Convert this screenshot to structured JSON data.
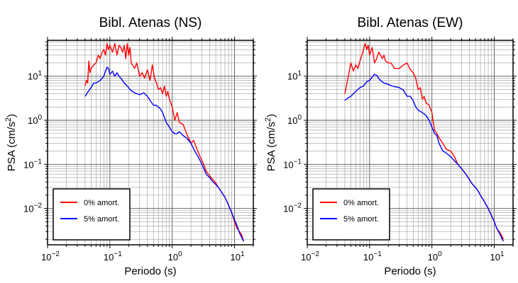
{
  "chart_data": [
    {
      "type": "line",
      "title": "Bibl. Atenas (NS)",
      "xlabel": "Periodo (s)",
      "ylabel": "PSA (cm/s²)",
      "xscale": "log",
      "yscale": "log",
      "xlim": [
        0.01,
        20
      ],
      "ylim": [
        0.0015,
        65
      ],
      "xtick_values": [
        0.01,
        0.1,
        1,
        10
      ],
      "xtick_labels": [
        {
          "base": "10",
          "exp": "−2"
        },
        {
          "base": "10",
          "exp": "−1"
        },
        {
          "base": "10",
          "exp": "0"
        },
        {
          "base": "10",
          "exp": "1"
        }
      ],
      "ytick_values": [
        0.01,
        0.1,
        1,
        10
      ],
      "ytick_labels": [
        {
          "base": "10",
          "exp": "−2"
        },
        {
          "base": "10",
          "exp": "−1"
        },
        {
          "base": "10",
          "exp": "0"
        },
        {
          "base": "10",
          "exp": "1"
        }
      ],
      "grid": true,
      "legend_position": "bottom-left",
      "series": [
        {
          "name": "0% amort.",
          "color": "#ff0000",
          "points": [
            [
              0.04,
              6
            ],
            [
              0.042,
              8
            ],
            [
              0.044,
              7
            ],
            [
              0.046,
              22
            ],
            [
              0.048,
              12
            ],
            [
              0.05,
              15
            ],
            [
              0.055,
              18
            ],
            [
              0.06,
              20
            ],
            [
              0.065,
              30
            ],
            [
              0.07,
              25
            ],
            [
              0.075,
              35
            ],
            [
              0.08,
              40
            ],
            [
              0.085,
              30
            ],
            [
              0.09,
              55
            ],
            [
              0.095,
              40
            ],
            [
              0.1,
              50
            ],
            [
              0.11,
              35
            ],
            [
              0.12,
              55
            ],
            [
              0.13,
              30
            ],
            [
              0.14,
              50
            ],
            [
              0.15,
              45
            ],
            [
              0.16,
              35
            ],
            [
              0.17,
              50
            ],
            [
              0.18,
              25
            ],
            [
              0.19,
              55
            ],
            [
              0.2,
              30
            ],
            [
              0.21,
              45
            ],
            [
              0.22,
              20
            ],
            [
              0.25,
              15
            ],
            [
              0.27,
              20
            ],
            [
              0.3,
              10
            ],
            [
              0.33,
              12
            ],
            [
              0.36,
              9
            ],
            [
              0.4,
              14
            ],
            [
              0.44,
              8
            ],
            [
              0.48,
              18
            ],
            [
              0.52,
              9
            ],
            [
              0.56,
              7
            ],
            [
              0.6,
              5
            ],
            [
              0.65,
              5.5
            ],
            [
              0.7,
              4
            ],
            [
              0.75,
              6
            ],
            [
              0.8,
              3.5
            ],
            [
              0.85,
              4.5
            ],
            [
              0.9,
              3
            ],
            [
              1.0,
              2
            ],
            [
              1.1,
              1
            ],
            [
              1.2,
              1.5
            ],
            [
              1.3,
              0.9
            ],
            [
              1.5,
              0.8
            ],
            [
              1.7,
              0.5
            ],
            [
              2.0,
              0.3
            ],
            [
              2.2,
              0.35
            ],
            [
              2.5,
              0.22
            ],
            [
              2.8,
              0.15
            ],
            [
              3.2,
              0.1
            ],
            [
              3.5,
              0.07
            ],
            [
              4,
              0.055
            ],
            [
              4.5,
              0.045
            ],
            [
              5,
              0.038
            ],
            [
              5.5,
              0.03
            ],
            [
              6,
              0.025
            ],
            [
              7,
              0.018
            ],
            [
              8,
              0.012
            ],
            [
              9,
              0.008
            ],
            [
              10,
              0.005
            ],
            [
              11,
              0.0035
            ],
            [
              12,
              0.003
            ],
            [
              13,
              0.0025
            ],
            [
              14,
              0.0018
            ]
          ]
        },
        {
          "name": "5% amort.",
          "color": "#0000ff",
          "points": [
            [
              0.04,
              3.5
            ],
            [
              0.045,
              4.5
            ],
            [
              0.05,
              5.5
            ],
            [
              0.055,
              7
            ],
            [
              0.06,
              7
            ],
            [
              0.065,
              7.5
            ],
            [
              0.07,
              8
            ],
            [
              0.075,
              9
            ],
            [
              0.08,
              10
            ],
            [
              0.085,
              13
            ],
            [
              0.09,
              16
            ],
            [
              0.095,
              15
            ],
            [
              0.1,
              11
            ],
            [
              0.11,
              13
            ],
            [
              0.12,
              10
            ],
            [
              0.13,
              12
            ],
            [
              0.14,
              10
            ],
            [
              0.15,
              9
            ],
            [
              0.17,
              7
            ],
            [
              0.19,
              6
            ],
            [
              0.21,
              5
            ],
            [
              0.23,
              4.5
            ],
            [
              0.25,
              4.2
            ],
            [
              0.3,
              3.8
            ],
            [
              0.35,
              4.2
            ],
            [
              0.4,
              3.5
            ],
            [
              0.45,
              2.7
            ],
            [
              0.5,
              2.2
            ],
            [
              0.55,
              2.2
            ],
            [
              0.6,
              2
            ],
            [
              0.65,
              1.8
            ],
            [
              0.7,
              1.5
            ],
            [
              0.8,
              0.9
            ],
            [
              0.9,
              0.7
            ],
            [
              1.0,
              0.55
            ],
            [
              1.1,
              0.5
            ],
            [
              1.2,
              0.5
            ],
            [
              1.3,
              0.55
            ],
            [
              1.5,
              0.45
            ],
            [
              1.7,
              0.4
            ],
            [
              2.0,
              0.3
            ],
            [
              2.3,
              0.2
            ],
            [
              2.6,
              0.15
            ],
            [
              3.0,
              0.1
            ],
            [
              3.5,
              0.06
            ],
            [
              4,
              0.05
            ],
            [
              4.5,
              0.04
            ],
            [
              5,
              0.035
            ],
            [
              5.5,
              0.03
            ],
            [
              6,
              0.025
            ],
            [
              7,
              0.018
            ],
            [
              8,
              0.012
            ],
            [
              9,
              0.008
            ],
            [
              10,
              0.0055
            ],
            [
              11,
              0.004
            ],
            [
              12,
              0.0028
            ],
            [
              13,
              0.0022
            ],
            [
              14,
              0.0018
            ]
          ]
        }
      ]
    },
    {
      "type": "line",
      "title": "Bibl. Atenas (EW)",
      "xlabel": "Periodo (s)",
      "ylabel": "PSA (cm/s²)",
      "xscale": "log",
      "yscale": "log",
      "xlim": [
        0.01,
        20
      ],
      "ylim": [
        0.0015,
        65
      ],
      "xtick_values": [
        0.01,
        0.1,
        1,
        10
      ],
      "xtick_labels": [
        {
          "base": "10",
          "exp": "−2"
        },
        {
          "base": "10",
          "exp": "−1"
        },
        {
          "base": "10",
          "exp": "0"
        },
        {
          "base": "10",
          "exp": "1"
        }
      ],
      "ytick_values": [
        0.01,
        0.1,
        1,
        10
      ],
      "ytick_labels": [
        {
          "base": "10",
          "exp": "−2"
        },
        {
          "base": "10",
          "exp": "−1"
        },
        {
          "base": "10",
          "exp": "0"
        },
        {
          "base": "10",
          "exp": "1"
        }
      ],
      "grid": true,
      "legend_position": "bottom-left",
      "series": [
        {
          "name": "0% amort.",
          "color": "#ff0000",
          "points": [
            [
              0.04,
              4
            ],
            [
              0.045,
              9
            ],
            [
              0.05,
              20
            ],
            [
              0.055,
              13
            ],
            [
              0.06,
              18
            ],
            [
              0.065,
              15
            ],
            [
              0.07,
              22
            ],
            [
              0.075,
              30
            ],
            [
              0.08,
              40
            ],
            [
              0.085,
              55
            ],
            [
              0.09,
              40
            ],
            [
              0.095,
              50
            ],
            [
              0.1,
              30
            ],
            [
              0.11,
              45
            ],
            [
              0.12,
              20
            ],
            [
              0.13,
              25
            ],
            [
              0.14,
              35
            ],
            [
              0.15,
              30
            ],
            [
              0.16,
              25
            ],
            [
              0.17,
              30
            ],
            [
              0.18,
              22
            ],
            [
              0.2,
              20
            ],
            [
              0.22,
              20
            ],
            [
              0.25,
              15
            ],
            [
              0.3,
              15
            ],
            [
              0.35,
              18
            ],
            [
              0.4,
              20
            ],
            [
              0.45,
              14
            ],
            [
              0.5,
              12
            ],
            [
              0.55,
              9
            ],
            [
              0.6,
              5
            ],
            [
              0.65,
              5.5
            ],
            [
              0.7,
              3
            ],
            [
              0.75,
              3.5
            ],
            [
              0.8,
              2.5
            ],
            [
              0.9,
              2.2
            ],
            [
              1.0,
              1.5
            ],
            [
              1.1,
              0.6
            ],
            [
              1.2,
              0.5
            ],
            [
              1.3,
              0.4
            ],
            [
              1.5,
              0.3
            ],
            [
              1.7,
              0.22
            ],
            [
              2.0,
              0.2
            ],
            [
              2.3,
              0.15
            ],
            [
              2.6,
              0.1
            ],
            [
              3.0,
              0.08
            ],
            [
              3.5,
              0.06
            ],
            [
              4,
              0.045
            ],
            [
              4.5,
              0.035
            ],
            [
              5,
              0.03
            ],
            [
              5.5,
              0.025
            ],
            [
              6,
              0.02
            ],
            [
              7,
              0.014
            ],
            [
              8,
              0.01
            ],
            [
              9,
              0.007
            ],
            [
              10,
              0.005
            ],
            [
              11,
              0.0035
            ],
            [
              12,
              0.003
            ],
            [
              13,
              0.0025
            ],
            [
              14,
              0.002
            ]
          ]
        },
        {
          "name": "5% amort.",
          "color": "#0000ff",
          "points": [
            [
              0.04,
              2.8
            ],
            [
              0.045,
              3.2
            ],
            [
              0.05,
              3.5
            ],
            [
              0.055,
              4
            ],
            [
              0.06,
              4.5
            ],
            [
              0.07,
              5.5
            ],
            [
              0.08,
              6
            ],
            [
              0.09,
              7.5
            ],
            [
              0.1,
              8
            ],
            [
              0.11,
              9.5
            ],
            [
              0.12,
              11
            ],
            [
              0.13,
              10.5
            ],
            [
              0.14,
              9
            ],
            [
              0.15,
              8
            ],
            [
              0.17,
              7
            ],
            [
              0.2,
              6.5
            ],
            [
              0.23,
              6
            ],
            [
              0.25,
              5.8
            ],
            [
              0.3,
              5.5
            ],
            [
              0.35,
              4.8
            ],
            [
              0.4,
              3.5
            ],
            [
              0.45,
              3.5
            ],
            [
              0.5,
              2.8
            ],
            [
              0.55,
              2
            ],
            [
              0.6,
              1.7
            ],
            [
              0.7,
              1.5
            ],
            [
              0.8,
              1.3
            ],
            [
              0.9,
              1
            ],
            [
              1.0,
              0.7
            ],
            [
              1.1,
              0.5
            ],
            [
              1.2,
              0.45
            ],
            [
              1.3,
              0.3
            ],
            [
              1.5,
              0.2
            ],
            [
              1.7,
              0.18
            ],
            [
              2.0,
              0.15
            ],
            [
              2.3,
              0.12
            ],
            [
              2.6,
              0.1
            ],
            [
              3.0,
              0.08
            ],
            [
              3.5,
              0.06
            ],
            [
              4,
              0.045
            ],
            [
              4.5,
              0.035
            ],
            [
              5,
              0.03
            ],
            [
              5.5,
              0.025
            ],
            [
              6,
              0.02
            ],
            [
              7,
              0.014
            ],
            [
              8,
              0.01
            ],
            [
              9,
              0.007
            ],
            [
              10,
              0.005
            ],
            [
              11,
              0.0035
            ],
            [
              12,
              0.0028
            ],
            [
              13,
              0.0022
            ],
            [
              14,
              0.0018
            ]
          ]
        }
      ]
    }
  ]
}
